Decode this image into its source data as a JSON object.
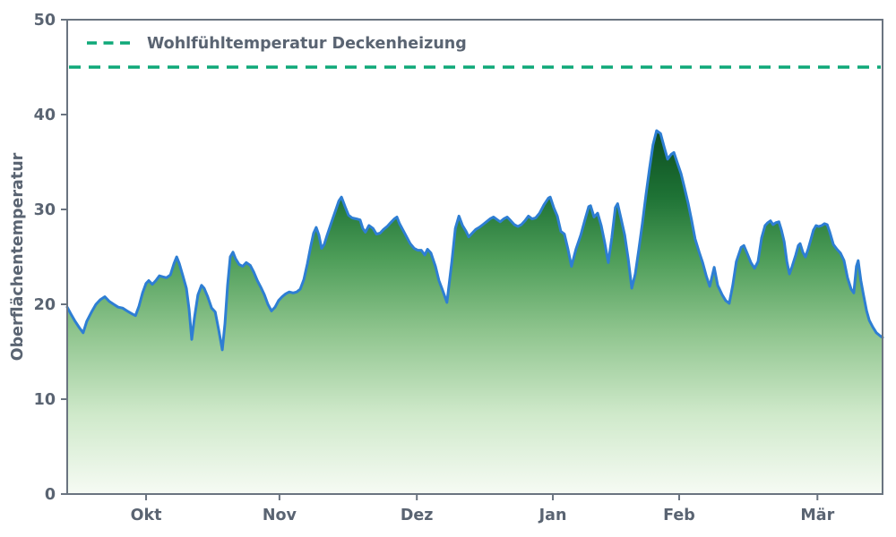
{
  "figure": {
    "background": "#ffffff"
  },
  "chart_data": {
    "type": "area",
    "title": "",
    "xlabel": "",
    "ylabel": "Oberflächentemperatur",
    "ylim": [
      0,
      50
    ],
    "xlim_days": [
      0,
      184
    ],
    "grid": false,
    "y_ticks": [
      0,
      10,
      20,
      30,
      40,
      50
    ],
    "x_ticks": {
      "positions_days": [
        17.8,
        47.9,
        78.9,
        109.6,
        138.1,
        169.3
      ],
      "labels": [
        "Okt",
        "Nov",
        "Dez",
        "Jan",
        "Feb",
        "Mär"
      ]
    },
    "legend": {
      "position": "upper-left",
      "entries": [
        {
          "label": "Wohlfühltemperatur Deckenheizung",
          "style": "dashed",
          "color": "#0fa878"
        }
      ]
    },
    "comfort_line": {
      "label": "Wohlfühltemperatur Deckenheizung",
      "value": 45,
      "color": "#0fa878",
      "style": "dashed"
    },
    "colors": {
      "line": "#2e7ed3",
      "comfort": "#0fa878",
      "spine": "#6a7480",
      "text": "#5a6472",
      "gradient_stops": [
        {
          "offset": 0.0,
          "color": "#0d4d20"
        },
        {
          "offset": 0.18,
          "color": "#1e7235"
        },
        {
          "offset": 0.35,
          "color": "#4d9d58"
        },
        {
          "offset": 0.55,
          "color": "#8ec48d"
        },
        {
          "offset": 0.78,
          "color": "#cfe9ca"
        },
        {
          "offset": 1.0,
          "color": "#f6fbf4"
        }
      ]
    },
    "series": [
      {
        "name": "Oberflächentemperatur",
        "line_color": "#2e7ed3",
        "fill": "green-gradient",
        "points": [
          [
            0,
            19.7
          ],
          [
            0.8,
            19.0
          ],
          [
            1.8,
            18.2
          ],
          [
            2.8,
            17.5
          ],
          [
            3.6,
            17.0
          ],
          [
            4.4,
            18.2
          ],
          [
            5.5,
            19.2
          ],
          [
            6.5,
            20.0
          ],
          [
            7.5,
            20.5
          ],
          [
            8.5,
            20.8
          ],
          [
            9.5,
            20.3
          ],
          [
            10.5,
            20.0
          ],
          [
            11.5,
            19.7
          ],
          [
            12.5,
            19.6
          ],
          [
            13.5,
            19.3
          ],
          [
            14.6,
            19.0
          ],
          [
            15.4,
            18.8
          ],
          [
            16.2,
            19.8
          ],
          [
            17,
            21.2
          ],
          [
            17.8,
            22.2
          ],
          [
            18.4,
            22.5
          ],
          [
            19.2,
            22.1
          ],
          [
            20,
            22.5
          ],
          [
            20.8,
            23.0
          ],
          [
            21.6,
            22.9
          ],
          [
            22.4,
            22.8
          ],
          [
            23.3,
            23.1
          ],
          [
            24.1,
            24.3
          ],
          [
            24.7,
            25.0
          ],
          [
            25.3,
            24.3
          ],
          [
            26.1,
            23.0
          ],
          [
            26.9,
            21.7
          ],
          [
            27.5,
            19.5
          ],
          [
            28.1,
            16.3
          ],
          [
            28.7,
            18.5
          ],
          [
            29.5,
            21.0
          ],
          [
            30.3,
            22.0
          ],
          [
            30.9,
            21.7
          ],
          [
            31.7,
            20.8
          ],
          [
            32.6,
            19.6
          ],
          [
            33.4,
            19.2
          ],
          [
            34.2,
            17.3
          ],
          [
            35,
            15.2
          ],
          [
            35.6,
            18.0
          ],
          [
            36.2,
            22.0
          ],
          [
            36.8,
            25.0
          ],
          [
            37.4,
            25.5
          ],
          [
            38,
            24.8
          ],
          [
            38.8,
            24.2
          ],
          [
            39.6,
            24.0
          ],
          [
            40.4,
            24.4
          ],
          [
            41.3,
            24.1
          ],
          [
            42.1,
            23.4
          ],
          [
            42.9,
            22.5
          ],
          [
            43.7,
            21.8
          ],
          [
            44.5,
            21.0
          ],
          [
            45.3,
            20.0
          ],
          [
            46.1,
            19.3
          ],
          [
            46.9,
            19.7
          ],
          [
            47.7,
            20.4
          ],
          [
            48.5,
            20.8
          ],
          [
            49.3,
            21.1
          ],
          [
            50.1,
            21.3
          ],
          [
            51,
            21.2
          ],
          [
            51.8,
            21.3
          ],
          [
            52.6,
            21.6
          ],
          [
            53.4,
            22.6
          ],
          [
            54.2,
            24.3
          ],
          [
            55,
            26.2
          ],
          [
            55.6,
            27.5
          ],
          [
            56.2,
            28.1
          ],
          [
            56.8,
            27.3
          ],
          [
            57.4,
            25.9
          ],
          [
            58,
            26.3
          ],
          [
            58.6,
            27.2
          ],
          [
            59.6,
            28.6
          ],
          [
            60.5,
            29.8
          ],
          [
            61.3,
            30.9
          ],
          [
            61.9,
            31.3
          ],
          [
            62.7,
            30.3
          ],
          [
            63.5,
            29.4
          ],
          [
            64.3,
            29.1
          ],
          [
            65.3,
            29.0
          ],
          [
            66.1,
            28.9
          ],
          [
            66.7,
            28.0
          ],
          [
            67.3,
            27.6
          ],
          [
            68.1,
            28.3
          ],
          [
            69,
            28.0
          ],
          [
            69.8,
            27.4
          ],
          [
            70.6,
            27.5
          ],
          [
            71.4,
            27.9
          ],
          [
            72.2,
            28.2
          ],
          [
            73,
            28.6
          ],
          [
            73.8,
            29.0
          ],
          [
            74.4,
            29.2
          ],
          [
            75,
            28.5
          ],
          [
            75.8,
            27.8
          ],
          [
            76.6,
            27.1
          ],
          [
            77.4,
            26.4
          ],
          [
            78.3,
            25.9
          ],
          [
            79.1,
            25.7
          ],
          [
            79.9,
            25.7
          ],
          [
            80.7,
            25.2
          ],
          [
            81.3,
            25.8
          ],
          [
            82.1,
            25.4
          ],
          [
            83.1,
            24.0
          ],
          [
            83.9,
            22.5
          ],
          [
            84.7,
            21.5
          ],
          [
            85.7,
            20.2
          ],
          [
            86.8,
            24.5
          ],
          [
            87.6,
            28.0
          ],
          [
            88.4,
            29.3
          ],
          [
            89.2,
            28.3
          ],
          [
            90,
            27.7
          ],
          [
            90.6,
            27.1
          ],
          [
            91.4,
            27.5
          ],
          [
            92.2,
            27.9
          ],
          [
            93,
            28.1
          ],
          [
            93.8,
            28.4
          ],
          [
            94.6,
            28.7
          ],
          [
            95.4,
            29.0
          ],
          [
            96.2,
            29.2
          ],
          [
            97.1,
            28.9
          ],
          [
            97.7,
            28.7
          ],
          [
            98.5,
            29.0
          ],
          [
            99.3,
            29.2
          ],
          [
            100.1,
            28.8
          ],
          [
            100.9,
            28.4
          ],
          [
            101.7,
            28.2
          ],
          [
            102.5,
            28.4
          ],
          [
            103.3,
            28.8
          ],
          [
            104.1,
            29.3
          ],
          [
            104.9,
            29.0
          ],
          [
            105.7,
            29.1
          ],
          [
            106.6,
            29.6
          ],
          [
            107.6,
            30.5
          ],
          [
            108.6,
            31.2
          ],
          [
            109,
            31.3
          ],
          [
            109.8,
            30.2
          ],
          [
            110.6,
            29.3
          ],
          [
            111.4,
            27.7
          ],
          [
            112.2,
            27.4
          ],
          [
            113,
            25.8
          ],
          [
            113.8,
            24.0
          ],
          [
            114.8,
            25.8
          ],
          [
            115.9,
            27.3
          ],
          [
            116.9,
            29.0
          ],
          [
            117.7,
            30.3
          ],
          [
            118.1,
            30.4
          ],
          [
            118.9,
            29.2
          ],
          [
            119.7,
            29.6
          ],
          [
            120.5,
            28.3
          ],
          [
            121.3,
            26.5
          ],
          [
            122.1,
            24.4
          ],
          [
            122.9,
            27.0
          ],
          [
            123.7,
            30.2
          ],
          [
            124.2,
            30.6
          ],
          [
            125,
            29.0
          ],
          [
            125.8,
            27.3
          ],
          [
            126.6,
            24.8
          ],
          [
            127.4,
            21.7
          ],
          [
            128.2,
            23.2
          ],
          [
            129,
            25.8
          ],
          [
            129.8,
            28.5
          ],
          [
            130.6,
            31.5
          ],
          [
            131.4,
            34.3
          ],
          [
            132.2,
            36.8
          ],
          [
            133,
            38.3
          ],
          [
            133.9,
            38.0
          ],
          [
            134.7,
            36.6
          ],
          [
            135.5,
            35.3
          ],
          [
            136.3,
            35.8
          ],
          [
            136.9,
            36.0
          ],
          [
            137.7,
            34.9
          ],
          [
            138.5,
            33.8
          ],
          [
            139.3,
            32.3
          ],
          [
            140.1,
            30.7
          ],
          [
            140.9,
            28.9
          ],
          [
            141.7,
            26.9
          ],
          [
            142.6,
            25.5
          ],
          [
            143.4,
            24.4
          ],
          [
            144.2,
            23.0
          ],
          [
            145,
            21.9
          ],
          [
            146,
            23.9
          ],
          [
            146.8,
            22.0
          ],
          [
            147.8,
            21.0
          ],
          [
            148.6,
            20.4
          ],
          [
            149.4,
            20.1
          ],
          [
            150.2,
            22.0
          ],
          [
            151,
            24.5
          ],
          [
            152.1,
            26.0
          ],
          [
            152.7,
            26.2
          ],
          [
            153.5,
            25.3
          ],
          [
            154.3,
            24.4
          ],
          [
            155.1,
            23.8
          ],
          [
            155.9,
            24.5
          ],
          [
            156.7,
            27.0
          ],
          [
            157.5,
            28.3
          ],
          [
            158.1,
            28.6
          ],
          [
            158.7,
            28.8
          ],
          [
            159.3,
            28.4
          ],
          [
            159.9,
            28.6
          ],
          [
            160.6,
            28.7
          ],
          [
            161.2,
            27.8
          ],
          [
            161.8,
            26.6
          ],
          [
            162.4,
            24.5
          ],
          [
            163,
            23.2
          ],
          [
            163.6,
            24.0
          ],
          [
            164.4,
            25.2
          ],
          [
            165,
            26.2
          ],
          [
            165.4,
            26.4
          ],
          [
            166,
            25.5
          ],
          [
            166.6,
            25.0
          ],
          [
            167.2,
            25.8
          ],
          [
            167.8,
            26.8
          ],
          [
            168.4,
            27.8
          ],
          [
            169,
            28.3
          ],
          [
            169.6,
            28.2
          ],
          [
            170.3,
            28.3
          ],
          [
            170.9,
            28.5
          ],
          [
            171.5,
            28.4
          ],
          [
            172.1,
            27.6
          ],
          [
            172.9,
            26.3
          ],
          [
            173.7,
            25.8
          ],
          [
            174.5,
            25.4
          ],
          [
            175.3,
            24.6
          ],
          [
            176.1,
            22.8
          ],
          [
            176.9,
            21.6
          ],
          [
            177.5,
            21.2
          ],
          [
            178.1,
            24.0
          ],
          [
            178.5,
            24.6
          ],
          [
            179.1,
            22.5
          ],
          [
            179.7,
            21.0
          ],
          [
            180.4,
            19.3
          ],
          [
            181,
            18.3
          ],
          [
            181.8,
            17.6
          ],
          [
            182.6,
            17.0
          ],
          [
            183.4,
            16.7
          ],
          [
            184,
            16.5
          ]
        ]
      }
    ]
  }
}
